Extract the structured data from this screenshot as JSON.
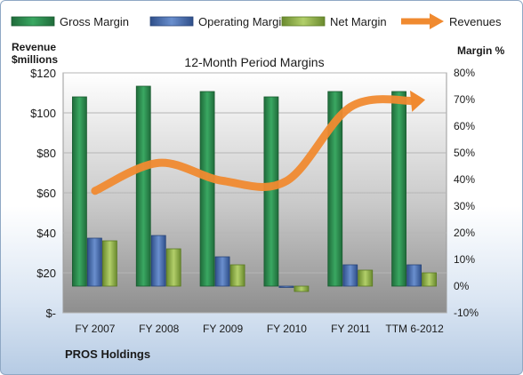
{
  "chart_data": {
    "type": "bar",
    "title": "12-Month Period Margins",
    "categories": [
      "FY 2007",
      "FY 2008",
      "FY 2009",
      "FY 2010",
      "FY 2011",
      "TTM 6-2012"
    ],
    "left_axis": {
      "label_line1": "Revenue",
      "label_line2": "$millions",
      "ylim": [
        0,
        120
      ],
      "ticks": [
        0,
        20,
        40,
        60,
        80,
        100,
        120
      ],
      "tick_labels": [
        "$-",
        "$20",
        "$40",
        "$60",
        "$80",
        "$100",
        "$120"
      ]
    },
    "right_axis": {
      "label": "Margin %",
      "ylim": [
        -10,
        80
      ],
      "ticks": [
        -10,
        0,
        10,
        20,
        30,
        40,
        50,
        60,
        70,
        80
      ],
      "tick_labels": [
        "-10%",
        "0%",
        "10%",
        "20%",
        "30%",
        "40%",
        "50%",
        "60%",
        "70%",
        "80%"
      ]
    },
    "series": [
      {
        "name": "Gross Margin",
        "axis": "right",
        "kind": "bar",
        "color": "#2e8b4f",
        "values": [
          71,
          75,
          73,
          71,
          73,
          73
        ]
      },
      {
        "name": "Operating Margin",
        "axis": "right",
        "kind": "bar",
        "color": "#4a6fb0",
        "values": [
          18,
          19,
          11,
          -0.5,
          8,
          8
        ]
      },
      {
        "name": "Net Margin",
        "axis": "right",
        "kind": "bar",
        "color": "#8fb04a",
        "values": [
          17,
          14,
          8,
          -2,
          6,
          5
        ]
      },
      {
        "name": "Revenues",
        "axis": "left",
        "kind": "line",
        "color": "#f08a30",
        "values": [
          61,
          75,
          66,
          66,
          103,
          106
        ]
      }
    ],
    "legend_position": "top",
    "grid": true
  },
  "footer": {
    "company": "PROS Holdings"
  }
}
